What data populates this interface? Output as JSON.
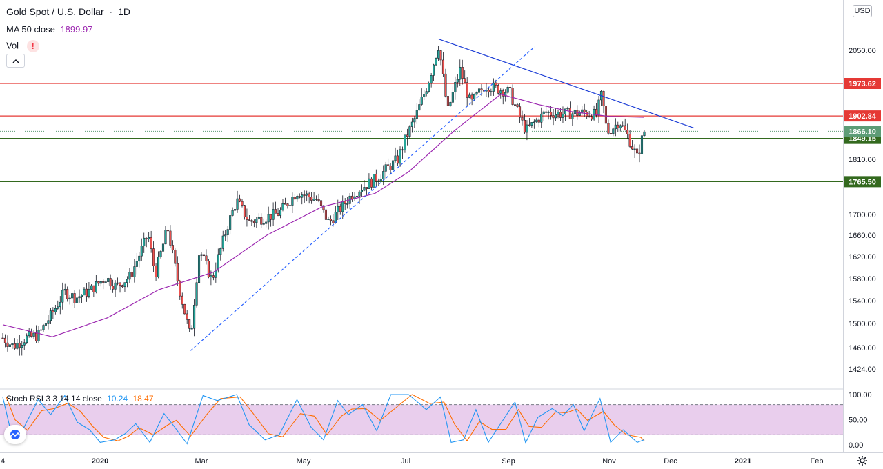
{
  "header": {
    "symbol": "Gold Spot / U.S. Dollar",
    "separator": "·",
    "interval": "1D",
    "ma_label": "MA 50 close",
    "ma_value": "1899.97",
    "vol_label": "Vol",
    "vol_warning": "!"
  },
  "currency_label": "USD",
  "stoch": {
    "label": "Stoch RSI 3 3 14 14 close",
    "k_value": "10.24",
    "d_value": "18.47"
  },
  "colors": {
    "up": "#26a69a",
    "down": "#ef5350",
    "ma": "#9c27b0",
    "resistance": "#e53935",
    "support": "#33691e",
    "trend_down": "#1e3fd6",
    "trend_up": "#2962ff",
    "stoch_k": "#2196f3",
    "stoch_d": "#ff6d00",
    "stoch_band": "#e1bee7",
    "last_price": "#5d9c76"
  },
  "chart_data": {
    "type": "candlestick",
    "title": "Gold Spot / U.S. Dollar · 1D",
    "x_axis_labels": [
      "4",
      "2020",
      "Mar",
      "May",
      "Jul",
      "Sep",
      "Nov",
      "Dec",
      "2021",
      "Feb"
    ],
    "y_axis_ticks": [
      1424,
      1460,
      1500,
      1540,
      1580,
      1620,
      1660,
      1700,
      1810,
      1850,
      2050
    ],
    "y_axis_tick_labels": [
      "1424.00",
      "1460.00",
      "1500.00",
      "1540.00",
      "1580.00",
      "1620.00",
      "1660.00",
      "1700.00",
      "1810.00",
      "1850.00",
      "2050.00"
    ],
    "horizontal_lines": [
      {
        "value": 1973.62,
        "label": "1973.62",
        "color": "resistance"
      },
      {
        "value": 1902.84,
        "label": "1902.84",
        "color": "resistance"
      },
      {
        "value": 1849.15,
        "label": "1849.15",
        "color": "support"
      },
      {
        "value": 1765.5,
        "label": "1765.50",
        "color": "support"
      }
    ],
    "last_price": {
      "value": 1866.1,
      "label": "1866.10"
    },
    "price_path": [
      [
        "2019-12-04",
        1476
      ],
      [
        "2019-12-10",
        1462
      ],
      [
        "2019-12-17",
        1476
      ],
      [
        "2019-12-24",
        1480
      ],
      [
        "2020-01-01",
        1518
      ],
      [
        "2020-01-08",
        1556
      ],
      [
        "2020-01-14",
        1545
      ],
      [
        "2020-01-22",
        1558
      ],
      [
        "2020-01-31",
        1582
      ],
      [
        "2020-02-06",
        1566
      ],
      [
        "2020-02-14",
        1584
      ],
      [
        "2020-02-24",
        1662
      ],
      [
        "2020-02-28",
        1587
      ],
      [
        "2020-03-06",
        1674
      ],
      [
        "2020-03-12",
        1570
      ],
      [
        "2020-03-19",
        1475
      ],
      [
        "2020-03-24",
        1633
      ],
      [
        "2020-03-31",
        1577
      ],
      [
        "2020-04-09",
        1680
      ],
      [
        "2020-04-14",
        1728
      ],
      [
        "2020-04-21",
        1686
      ],
      [
        "2020-04-30",
        1694
      ],
      [
        "2020-05-08",
        1703
      ],
      [
        "2020-05-18",
        1745
      ],
      [
        "2020-05-29",
        1730
      ],
      [
        "2020-06-05",
        1684
      ],
      [
        "2020-06-19",
        1744
      ],
      [
        "2020-07-01",
        1770
      ],
      [
        "2020-07-14",
        1810
      ],
      [
        "2020-07-24",
        1902
      ],
      [
        "2020-07-31",
        1975
      ],
      [
        "2020-08-06",
        2063
      ],
      [
        "2020-08-11",
        1912
      ],
      [
        "2020-08-18",
        2005
      ],
      [
        "2020-08-24",
        1928
      ],
      [
        "2020-09-01",
        1970
      ],
      [
        "2020-09-15",
        1955
      ],
      [
        "2020-09-24",
        1868
      ],
      [
        "2020-10-05",
        1910
      ],
      [
        "2020-10-15",
        1907
      ],
      [
        "2020-10-27",
        1910
      ],
      [
        "2020-11-03",
        1905
      ],
      [
        "2020-11-06",
        1951
      ],
      [
        "2020-11-09",
        1862
      ],
      [
        "2020-11-16",
        1890
      ],
      [
        "2020-11-23",
        1837
      ],
      [
        "2020-11-26",
        1812
      ],
      [
        "2020-11-30",
        1866
      ]
    ],
    "ma_path": [
      [
        "2019-12-04",
        1498
      ],
      [
        "2020-01-01",
        1478
      ],
      [
        "2020-02-01",
        1510
      ],
      [
        "2020-03-01",
        1560
      ],
      [
        "2020-04-01",
        1592
      ],
      [
        "2020-05-01",
        1660
      ],
      [
        "2020-06-01",
        1715
      ],
      [
        "2020-07-01",
        1742
      ],
      [
        "2020-07-20",
        1785
      ],
      [
        "2020-08-15",
        1868
      ],
      [
        "2020-09-10",
        1950
      ],
      [
        "2020-10-01",
        1928
      ],
      [
        "2020-10-20",
        1912
      ],
      [
        "2020-11-10",
        1902
      ],
      [
        "2020-11-30",
        1899.97
      ]
    ],
    "trendlines": [
      {
        "name": "descending resistance",
        "from": [
          "2020-08-06",
          2076
        ],
        "to": [
          "2020-12-28",
          1874
        ],
        "style": "solid"
      },
      {
        "name": "ascending support",
        "from": [
          "2020-03-19",
          1455
        ],
        "to": [
          "2020-09-29",
          2058
        ],
        "style": "dashed"
      }
    ],
    "stoch_rsi": {
      "params": "3 3 14 14 close",
      "k_last": 10.24,
      "d_last": 18.47,
      "band_upper": 80,
      "band_lower": 20,
      "y_ticks": [
        "100.00",
        "50.00",
        "0.00"
      ],
      "k_path": [
        [
          "2019-12-04",
          95
        ],
        [
          "2019-12-09",
          20
        ],
        [
          "2019-12-16",
          35
        ],
        [
          "2019-12-24",
          90
        ],
        [
          "2019-12-31",
          60
        ],
        [
          "2020-01-08",
          98
        ],
        [
          "2020-01-15",
          45
        ],
        [
          "2020-01-22",
          30
        ],
        [
          "2020-01-28",
          5
        ],
        [
          "2020-02-05",
          10
        ],
        [
          "2020-02-11",
          22
        ],
        [
          "2020-02-17",
          42
        ],
        [
          "2020-02-25",
          5
        ],
        [
          "2020-03-04",
          62
        ],
        [
          "2020-03-09",
          40
        ],
        [
          "2020-03-17",
          2
        ],
        [
          "2020-03-26",
          98
        ],
        [
          "2020-04-03",
          88
        ],
        [
          "2020-04-14",
          100
        ],
        [
          "2020-04-21",
          40
        ],
        [
          "2020-04-30",
          10
        ],
        [
          "2020-05-08",
          20
        ],
        [
          "2020-05-18",
          90
        ],
        [
          "2020-05-26",
          35
        ],
        [
          "2020-06-02",
          10
        ],
        [
          "2020-06-10",
          88
        ],
        [
          "2020-06-16",
          60
        ],
        [
          "2020-06-24",
          80
        ],
        [
          "2020-07-02",
          28
        ],
        [
          "2020-07-10",
          100
        ],
        [
          "2020-07-20",
          100
        ],
        [
          "2020-07-30",
          70
        ],
        [
          "2020-08-07",
          95
        ],
        [
          "2020-08-13",
          5
        ],
        [
          "2020-08-20",
          10
        ],
        [
          "2020-08-27",
          70
        ],
        [
          "2020-09-03",
          5
        ],
        [
          "2020-09-11",
          48
        ],
        [
          "2020-09-18",
          85
        ],
        [
          "2020-09-24",
          4
        ],
        [
          "2020-10-01",
          55
        ],
        [
          "2020-10-09",
          72
        ],
        [
          "2020-10-15",
          58
        ],
        [
          "2020-10-21",
          80
        ],
        [
          "2020-10-27",
          28
        ],
        [
          "2020-11-05",
          92
        ],
        [
          "2020-11-11",
          5
        ],
        [
          "2020-11-18",
          30
        ],
        [
          "2020-11-26",
          5
        ],
        [
          "2020-11-30",
          10.24
        ]
      ]
    }
  }
}
